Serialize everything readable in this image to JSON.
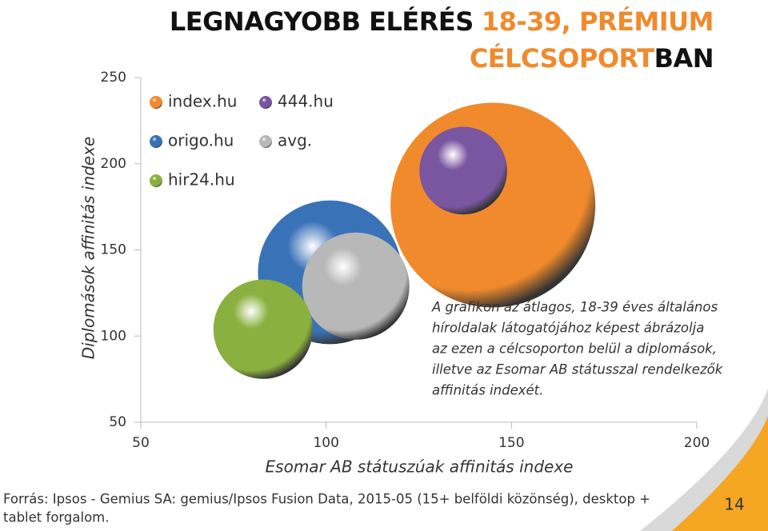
{
  "chart_data": {
    "type": "bubble",
    "title_lines": [
      [
        {
          "text": "LEGNAGYOBB ELÉRÉS",
          "color": "#111111"
        },
        {
          "text": "18-39, PRÉMIUM",
          "color": "#f08a2c"
        }
      ],
      [
        {
          "text": "CÉLCSOPORT",
          "color": "#f08a2c"
        },
        {
          "text": "BAN",
          "color": "#111111"
        }
      ]
    ],
    "x_label": "Esomar AB státuszúak affinitás indexe",
    "y_label": "Diplomások affinitás indexe",
    "xlim": [
      50,
      200
    ],
    "xticks": [
      50,
      100,
      150,
      200
    ],
    "ylim": [
      50,
      250
    ],
    "yticks": [
      50,
      100,
      150,
      200,
      250
    ],
    "series": [
      {
        "name": "index.hu",
        "color": "#f08a2c",
        "x": 145,
        "y": 176,
        "size": 365
      },
      {
        "name": "origo.hu",
        "color": "#3a72b8",
        "x": 101,
        "y": 137,
        "size": 180
      },
      {
        "name": "hir24.hu",
        "color": "#8ab040",
        "x": 83,
        "y": 104,
        "size": 86
      },
      {
        "name": "444.hu",
        "color": "#7a55a0",
        "x": 137,
        "y": 196,
        "size": 67
      },
      {
        "name": "avg.",
        "color": "#b8b8b8",
        "x": 108,
        "y": 129,
        "size": 100
      }
    ],
    "annotation_lines": [
      "A grafikon az átlagos, 18-39 éves általános",
      "híroldalak látogatójához képest ábrázolja",
      "az ezen a célcsoporton belül a diplomások,",
      "illetve az Esomar AB státusszal rendelkezők",
      "affinitás indexét."
    ],
    "source_lines": [
      "Forrás: Ipsos - Gemius SA: gemius/Ipsos Fusion Data, 2015-05 (15+ belföldi közönség), desktop +",
      "tablet forgalom."
    ],
    "page_number": "14"
  }
}
